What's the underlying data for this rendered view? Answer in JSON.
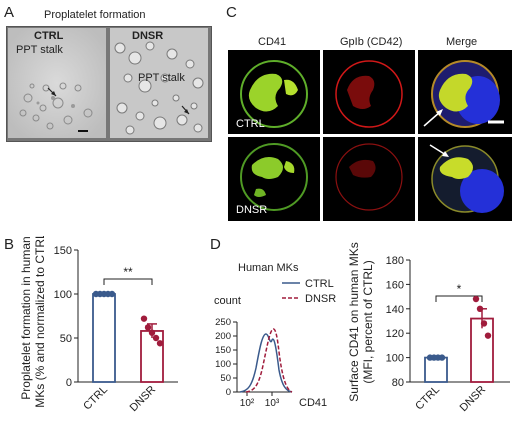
{
  "panels": {
    "A": {
      "letter": "A",
      "title": "Proplatelet formation",
      "images": [
        {
          "condition": "CTRL",
          "annotation": "PPT stalk"
        },
        {
          "condition": "DNSR",
          "annotation": "PPT stalk"
        }
      ]
    },
    "B": {
      "letter": "B",
      "ylabel_line1": "Proplatelet formation in human",
      "ylabel_line2": "MKs (% and normalized to CTRL)",
      "significance": "**",
      "chart_data": {
        "type": "bar",
        "categories": [
          "CTRL",
          "DNSR"
        ],
        "values": [
          100,
          58
        ],
        "errors": [
          0,
          8
        ],
        "points": [
          [
            100,
            100,
            100,
            100,
            100
          ],
          [
            72,
            62,
            56,
            50,
            44
          ]
        ],
        "ylim": [
          0,
          150
        ],
        "yticks": [
          0,
          50,
          100,
          150
        ],
        "colors": [
          "#3a5a8c",
          "#a01c3c"
        ]
      }
    },
    "C": {
      "letter": "C",
      "column_headers": [
        "CD41",
        "GpIb (CD42)",
        "Merge"
      ],
      "row_labels": [
        "CTRL",
        "DNSR"
      ]
    },
    "D": {
      "letter": "D",
      "hist_title": "Human MKs",
      "legend": [
        "CTRL",
        "DNSR"
      ],
      "count_label": "count",
      "xlabel": "CD41",
      "hist_data": {
        "type": "line",
        "yticks": [
          0,
          50,
          100,
          150,
          200,
          250
        ],
        "xticks": [
          "10²",
          "10³"
        ],
        "colors": [
          "#3a5a8c",
          "#a01c3c"
        ]
      },
      "scatter": {
        "ylabel_line1": "Surface CD41 on human MKs",
        "ylabel_line2": "(MFI, percent of CTRL)",
        "significance": "*",
        "chart_data": {
          "type": "scatter",
          "categories": [
            "CTRL",
            "DNSR"
          ],
          "values": [
            100,
            132
          ],
          "errors": [
            0,
            8
          ],
          "points": [
            [
              100,
              100,
              100,
              100
            ],
            [
              148,
              140,
              128,
              118
            ]
          ],
          "ylim": [
            80,
            180
          ],
          "yticks": [
            80,
            100,
            120,
            140,
            160,
            180
          ],
          "colors": [
            "#3a5a8c",
            "#a01c3c"
          ]
        }
      }
    }
  }
}
